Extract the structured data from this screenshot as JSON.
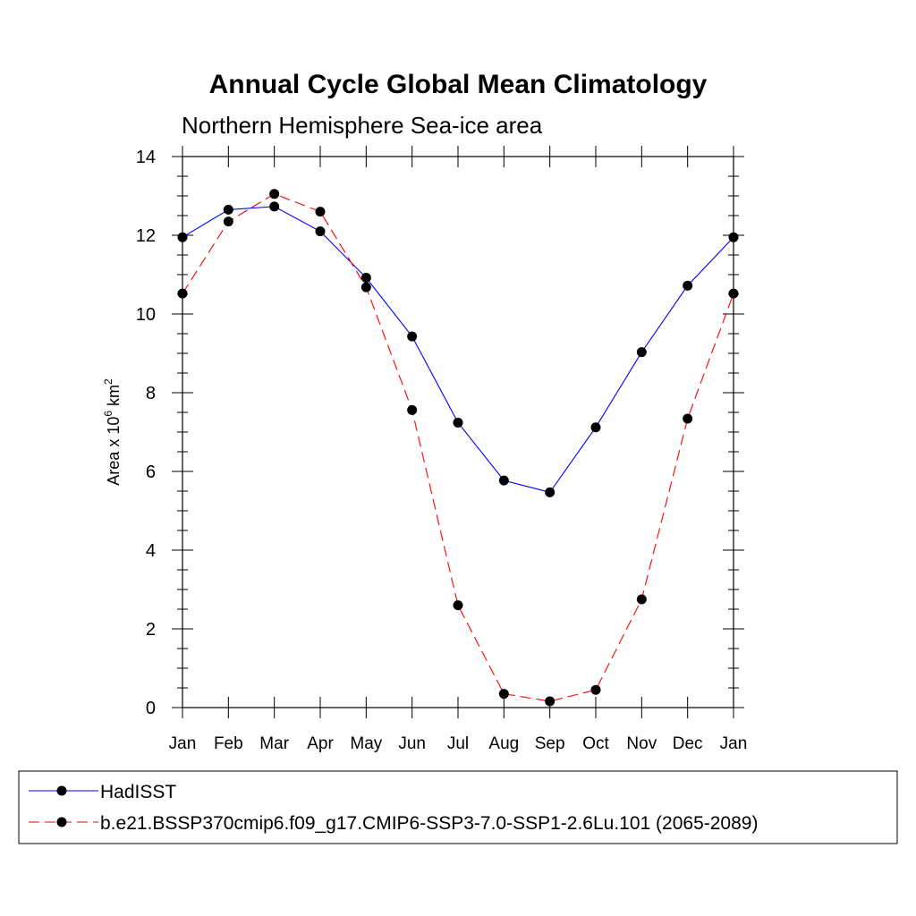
{
  "chart_data": {
    "type": "line",
    "title": "Annual Cycle Global Mean Climatology",
    "subtitle": "Northern Hemisphere Sea-ice area",
    "ylabel": "Area x 10",
    "ylabel_exp1": "6",
    "ylabel_unit": " km",
    "ylabel_exp2": "2",
    "categories": [
      "Jan",
      "Feb",
      "Mar",
      "Apr",
      "May",
      "Jun",
      "Jul",
      "Aug",
      "Sep",
      "Oct",
      "Nov",
      "Dec",
      "Jan"
    ],
    "ylim": [
      0,
      14
    ],
    "yticks": [
      "0",
      "2",
      "4",
      "6",
      "8",
      "10",
      "12",
      "14"
    ],
    "series": [
      {
        "name": "HadISST",
        "color": "#0000ff",
        "dashed": false,
        "values": [
          11.95,
          12.65,
          12.73,
          12.1,
          10.92,
          9.43,
          7.24,
          5.77,
          5.47,
          7.12,
          9.03,
          10.72,
          11.95
        ]
      },
      {
        "name": "b.e21.BSSP370cmip6.f09_g17.CMIP6-SSP3-7.0-SSP1-2.6Lu.101 (2065-2089)",
        "color": "#ff0000",
        "dashed": true,
        "values": [
          10.52,
          12.35,
          13.05,
          12.6,
          10.68,
          7.56,
          2.6,
          0.35,
          0.16,
          0.45,
          2.75,
          7.34,
          10.52
        ]
      }
    ]
  }
}
